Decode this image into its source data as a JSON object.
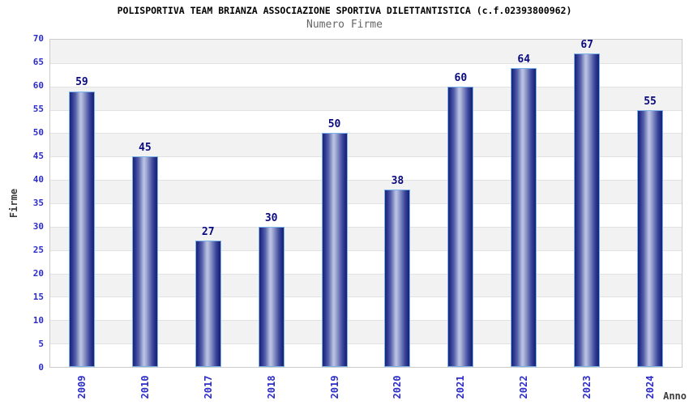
{
  "chart_data": {
    "type": "bar",
    "title": "POLISPORTIVA TEAM BRIANZA ASSOCIAZIONE SPORTIVA DILETTANTISTICA (c.f.02393800962)",
    "subtitle": "Numero Firme",
    "xlabel": "Anno",
    "ylabel": "Firme",
    "categories": [
      "2009",
      "2010",
      "2017",
      "2018",
      "2019",
      "2020",
      "2021",
      "2022",
      "2023",
      "2024"
    ],
    "values": [
      59,
      45,
      27,
      30,
      50,
      38,
      60,
      64,
      67,
      55
    ],
    "ylim": [
      0,
      70
    ],
    "ytick_step": 5,
    "y_ticks": [
      0,
      5,
      10,
      15,
      20,
      25,
      30,
      35,
      40,
      45,
      50,
      55,
      60,
      65,
      70
    ],
    "grid": "horizontal-bands-alternating",
    "legend": "none",
    "colors": {
      "bar_dark": "#1b2371",
      "bar_mid": "#5560aa",
      "bar_light": "#bdc5e6",
      "bar_border": "#79b2e8",
      "tick_label": "#2c2cc8",
      "value_label": "#0a0a80",
      "band_gray": "#f2f2f2",
      "band_white": "#ffffff",
      "gridline": "#e2e2e2",
      "plot_border": "#cccccc",
      "title_color": "#000000",
      "subtitle_color": "#666666",
      "axis_title_color": "#3d3d3d"
    }
  }
}
